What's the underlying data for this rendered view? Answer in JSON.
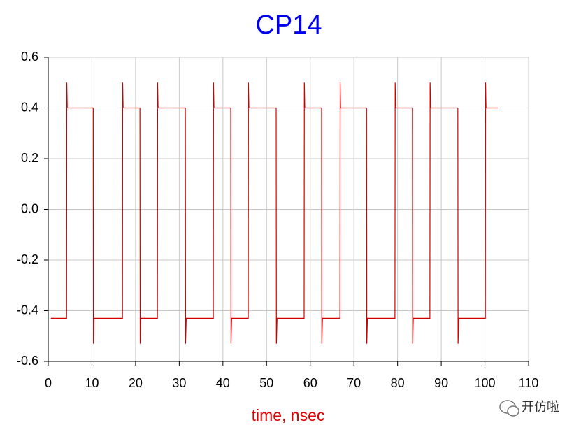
{
  "chart_data": {
    "type": "line",
    "title": "CP14",
    "x_label": "time, nsec",
    "x": [
      0.6,
      4.2,
      4.25,
      4.35,
      10.3,
      10.35,
      10.5,
      17.0,
      17.05,
      17.15,
      21.0,
      21.05,
      21.2,
      25.0,
      25.05,
      25.15,
      31.4,
      31.45,
      31.6,
      37.8,
      37.85,
      37.95,
      41.8,
      41.85,
      42.0,
      45.8,
      45.85,
      45.95,
      52.2,
      52.25,
      52.4,
      58.6,
      58.65,
      58.75,
      62.6,
      62.65,
      62.8,
      66.8,
      66.85,
      66.95,
      72.9,
      72.95,
      73.1,
      79.4,
      79.45,
      79.55,
      83.4,
      83.45,
      83.6,
      87.4,
      87.45,
      87.55,
      93.8,
      93.85,
      94.0,
      100.1,
      100.15,
      100.25,
      103.1
    ],
    "series": [
      {
        "color": "#d00000",
        "values": [
          -0.43,
          -0.43,
          0.5,
          0.4,
          0.4,
          -0.53,
          -0.43,
          -0.43,
          0.5,
          0.4,
          0.4,
          -0.53,
          -0.43,
          -0.43,
          0.5,
          0.4,
          0.4,
          -0.53,
          -0.43,
          -0.43,
          0.5,
          0.4,
          0.4,
          -0.53,
          -0.43,
          -0.43,
          0.5,
          0.4,
          0.4,
          -0.53,
          -0.43,
          -0.43,
          0.5,
          0.4,
          0.4,
          -0.53,
          -0.43,
          -0.43,
          0.5,
          0.4,
          0.4,
          -0.53,
          -0.43,
          -0.43,
          0.5,
          0.4,
          0.4,
          -0.53,
          -0.43,
          -0.43,
          0.5,
          0.4,
          0.4,
          -0.53,
          -0.43,
          -0.43,
          0.5,
          0.4,
          0.4
        ]
      }
    ],
    "xlim": [
      0,
      110
    ],
    "xticks": [
      0,
      10,
      20,
      30,
      40,
      50,
      60,
      70,
      80,
      90,
      100,
      110
    ],
    "ylim": [
      -0.6,
      0.6
    ],
    "yticks": [
      0.6,
      0.4,
      0.2,
      {
        "value": 0,
        "label": "0.0"
      },
      -0.2,
      -0.4,
      -0.6
    ],
    "grid": true
  },
  "watermark": "开仿啦"
}
